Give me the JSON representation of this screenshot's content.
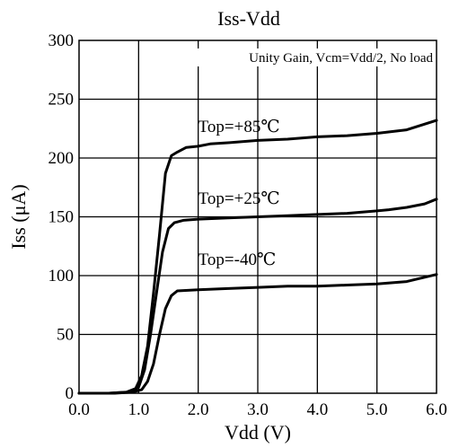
{
  "chart_data": {
    "type": "line",
    "title": "Iss-Vdd",
    "xlabel": "Vdd (V)",
    "ylabel": "Iss (μA)",
    "annotation": "Unity Gain, Vcm=Vdd/2, No load",
    "xlim": [
      0,
      6
    ],
    "ylim": [
      0,
      300
    ],
    "xticks": [
      "0.0",
      "1.0",
      "2.0",
      "3.0",
      "4.0",
      "5.0",
      "6.0"
    ],
    "yticks": [
      "0",
      "50",
      "100",
      "150",
      "200",
      "250",
      "300"
    ],
    "x_tick_values": [
      0,
      1,
      2,
      3,
      4,
      5,
      6
    ],
    "y_tick_values": [
      0,
      50,
      100,
      150,
      200,
      250,
      300
    ],
    "grid": true,
    "series": [
      {
        "name": "Top=+85℃",
        "x": [
          0.0,
          0.5,
          0.8,
          0.95,
          1.05,
          1.15,
          1.25,
          1.35,
          1.45,
          1.55,
          1.65,
          1.8,
          2.0,
          2.2,
          2.5,
          3.0,
          3.5,
          4.0,
          4.5,
          5.0,
          5.5,
          5.75,
          6.0
        ],
        "y": [
          0,
          0,
          1,
          4,
          15,
          40,
          85,
          135,
          187,
          202,
          205,
          209,
          210,
          212,
          213,
          215,
          216,
          218,
          219,
          221,
          224,
          228,
          232
        ]
      },
      {
        "name": "Top=+25℃",
        "x": [
          0.0,
          0.5,
          0.85,
          1.0,
          1.1,
          1.2,
          1.3,
          1.4,
          1.5,
          1.6,
          1.75,
          2.0,
          2.5,
          3.0,
          3.5,
          4.0,
          4.5,
          5.0,
          5.2,
          5.5,
          5.8,
          6.0
        ],
        "y": [
          0,
          0,
          1,
          5,
          20,
          50,
          85,
          120,
          140,
          145,
          147,
          148,
          149,
          150,
          151,
          152,
          153,
          155,
          156,
          158,
          161,
          165
        ]
      },
      {
        "name": "Top=-40℃",
        "x": [
          0.0,
          0.6,
          0.9,
          1.05,
          1.15,
          1.25,
          1.35,
          1.45,
          1.55,
          1.65,
          2.0,
          2.5,
          3.0,
          3.5,
          4.0,
          4.5,
          5.0,
          5.5,
          6.0
        ],
        "y": [
          0,
          0,
          1,
          3,
          10,
          25,
          50,
          72,
          83,
          87,
          88,
          89,
          90,
          91,
          91,
          92,
          93,
          95,
          101
        ]
      }
    ],
    "series_labels_at": [
      {
        "x": 2.0,
        "y": 222
      },
      {
        "x": 2.0,
        "y": 161
      },
      {
        "x": 2.0,
        "y": 109
      }
    ]
  }
}
